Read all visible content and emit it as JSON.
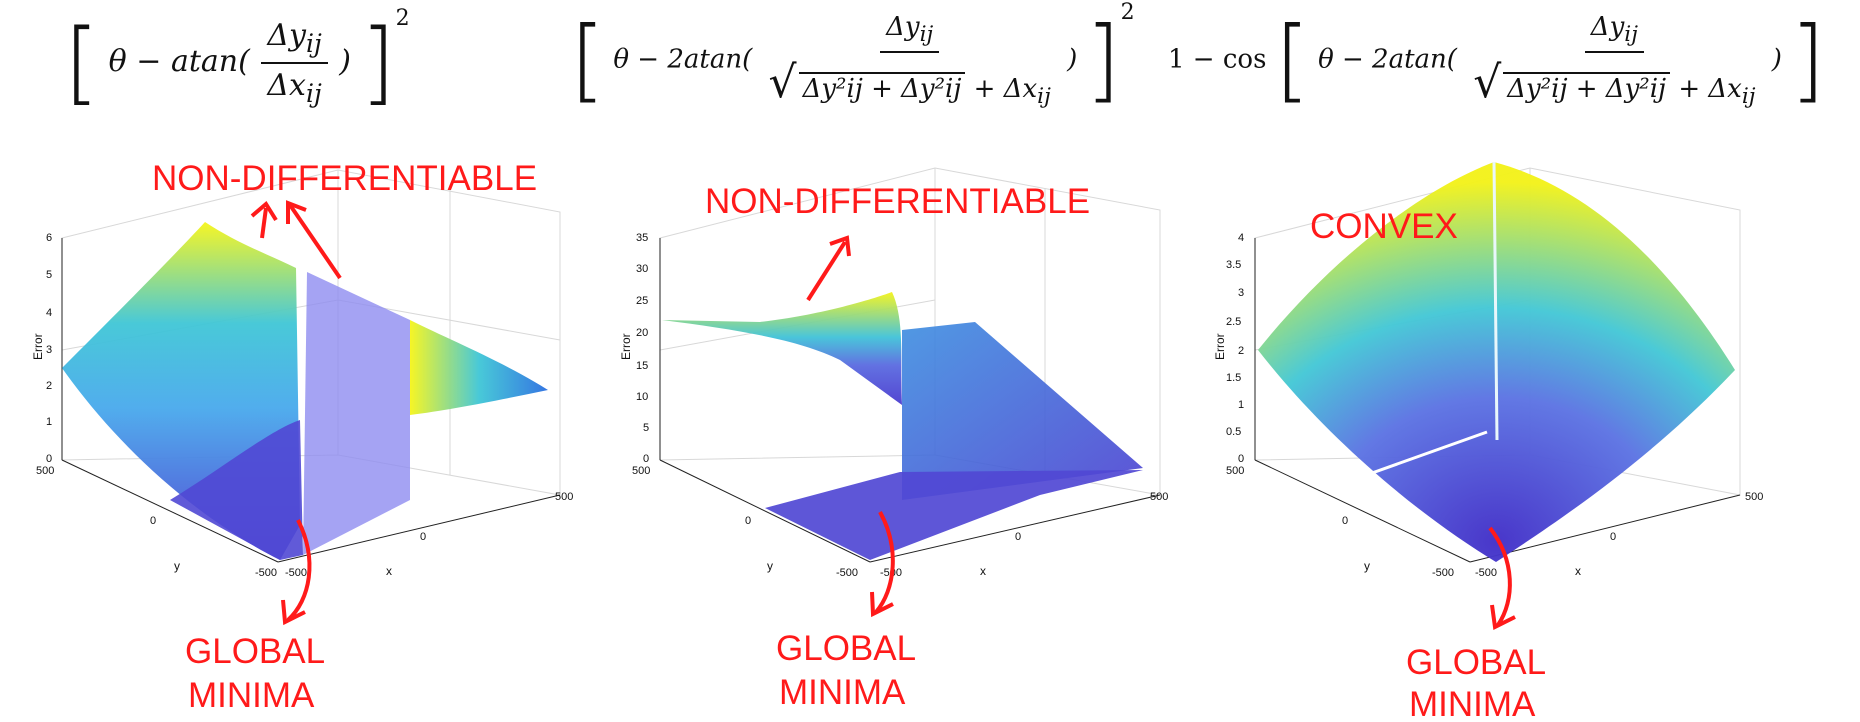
{
  "equations": [
    {
      "lhs": "",
      "func": "atan(",
      "num": "Δy",
      "num_sub": "ij",
      "den": "Δx",
      "den_sub": "ij",
      "tail": ")",
      "power": "2",
      "prefix_theta": "θ − "
    },
    {
      "lhs": "",
      "func": "2atan(",
      "num": "Δy",
      "num_sub": "ij",
      "den_rad": "Δy²ij + Δy²ij",
      "den_extra": "+ Δx",
      "den_extra_sub": "ij",
      "tail": ")",
      "power": "2",
      "prefix_theta": "θ − "
    },
    {
      "lhs": "1 − cos",
      "func": "2atan(",
      "num": "Δy",
      "num_sub": "ij",
      "den_rad": "Δy²ij + Δy²ij",
      "den_extra": "+ Δx",
      "den_extra_sub": "ij",
      "tail": ")",
      "prefix_theta": "θ − "
    }
  ],
  "plots": [
    {
      "zlabel": "Error",
      "xlabel": "x",
      "ylabel": "y",
      "zticks": [
        "0",
        "1",
        "2",
        "3",
        "4",
        "5",
        "6"
      ],
      "xticks": [
        "-500",
        "0",
        "500"
      ],
      "yticks": [
        "500",
        "0",
        "-500"
      ],
      "annotations": {
        "top": "NON-DIFFERENTIABLE",
        "bottom1": "GLOBAL",
        "bottom2": "MINIMA"
      }
    },
    {
      "zlabel": "Error",
      "xlabel": "x",
      "ylabel": "y",
      "zticks": [
        "0",
        "5",
        "10",
        "15",
        "20",
        "25",
        "30",
        "35"
      ],
      "xticks": [
        "-500",
        "0",
        "500"
      ],
      "yticks": [
        "500",
        "0",
        "-500"
      ],
      "annotations": {
        "top": "NON-DIFFERENTIABLE",
        "bottom1": "GLOBAL",
        "bottom2": "MINIMA"
      }
    },
    {
      "zlabel": "Error",
      "xlabel": "x",
      "ylabel": "y",
      "zticks": [
        "0",
        "0.5",
        "1",
        "1.5",
        "2",
        "2.5",
        "3",
        "3.5",
        "4"
      ],
      "xticks": [
        "-500",
        "0",
        "500"
      ],
      "yticks": [
        "500",
        "0",
        "-500"
      ],
      "annotations": {
        "top": "CONVEX",
        "bottom1": "GLOBAL",
        "bottom2": "MINIMA"
      }
    }
  ],
  "colors": {
    "annotation": "#ff1a1a",
    "surface_low": "#4b3fd1",
    "surface_mid": "#3fc6d6",
    "surface_high": "#f6f51a"
  }
}
